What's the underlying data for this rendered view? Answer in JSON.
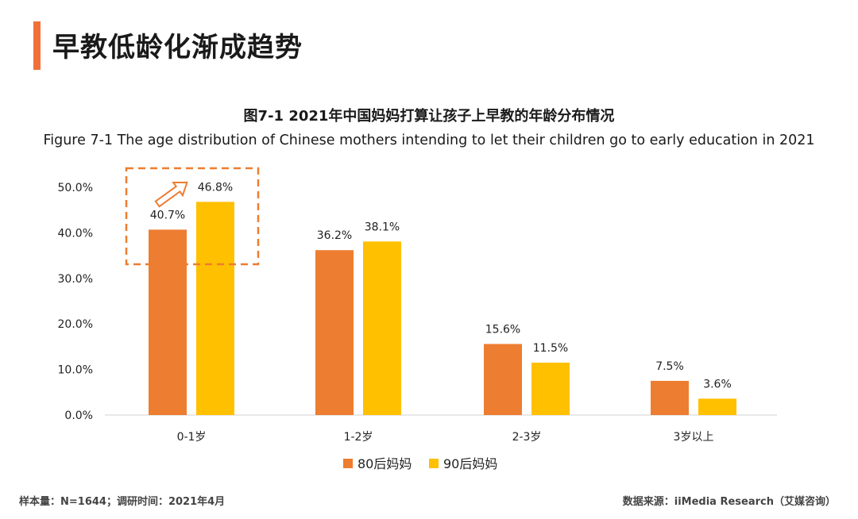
{
  "header": {
    "title": "早教低龄化渐成趋势"
  },
  "chart_data": {
    "type": "bar",
    "title": "图7-1 2021年中国妈妈打算让孩子上早教的年龄分布情况",
    "subtitle": "Figure 7-1 The age distribution of Chinese mothers intending to let their children go to early education in 2021",
    "categories": [
      "0-1岁",
      "1-2岁",
      "2-3岁",
      "3岁以上"
    ],
    "series": [
      {
        "name": "80后妈妈",
        "color": "#ed7d31",
        "values": [
          40.7,
          36.2,
          15.6,
          7.5
        ]
      },
      {
        "name": "90后妈妈",
        "color": "#ffc000",
        "values": [
          46.8,
          38.1,
          11.5,
          3.6
        ]
      }
    ],
    "ylim": [
      0,
      50
    ],
    "yticks": [
      "0.0%",
      "10.0%",
      "20.0%",
      "30.0%",
      "40.0%",
      "50.0%"
    ],
    "data_labels": [
      [
        "40.7%",
        "36.2%",
        "15.6%",
        "7.5%"
      ],
      [
        "46.8%",
        "38.1%",
        "11.5%",
        "3.6%"
      ]
    ],
    "legend_position": "bottom",
    "highlight": "0-1岁 dashed box with upward arrow"
  },
  "footer": {
    "sample": "样本量：N=1644；调研时间：2021年4月",
    "source": "数据来源：iiMedia Research（艾媒咨询）"
  }
}
